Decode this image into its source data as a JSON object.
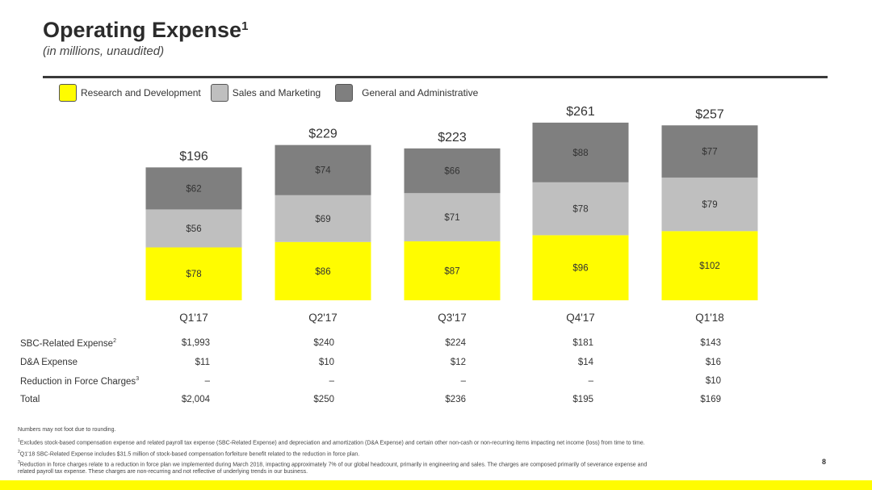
{
  "header": {
    "title": "Operating Expense",
    "title_sup": "1",
    "subtitle": "(in millions, unaudited)"
  },
  "colors": {
    "rd": "#fffc00",
    "sm": "#bfbfbf",
    "ga": "#7f7f7f",
    "text": "#333333"
  },
  "chart_data": {
    "type": "bar",
    "stacked": true,
    "categories": [
      "Q1'17",
      "Q2'17",
      "Q3'17",
      "Q4'17",
      "Q1'18"
    ],
    "series": [
      {
        "name": "Research and Development",
        "values": [
          78,
          86,
          87,
          96,
          102
        ],
        "labels": [
          "$78",
          "$86",
          "$87",
          "$96",
          "$102"
        ]
      },
      {
        "name": "Sales and Marketing",
        "values": [
          56,
          69,
          71,
          78,
          79
        ],
        "labels": [
          "$56",
          "$69",
          "$71",
          "$78",
          "$79"
        ]
      },
      {
        "name": "General and Administrative",
        "values": [
          62,
          74,
          66,
          88,
          77
        ],
        "labels": [
          "$62",
          "$74",
          "$66",
          "$88",
          "$77"
        ]
      }
    ],
    "totals": [
      196,
      229,
      223,
      261,
      257
    ],
    "total_labels": [
      "$196",
      "$229",
      "$223",
      "$261",
      "$257"
    ],
    "legend_position": "top-left",
    "grid": false
  },
  "table": {
    "rows": [
      {
        "label": "SBC-Related Expense",
        "sup": "2",
        "values": [
          "$1,993",
          "$240",
          "$224",
          "$181",
          "$143"
        ]
      },
      {
        "label": "D&A Expense",
        "sup": "",
        "values": [
          "$11",
          "$10",
          "$12",
          "$14",
          "$16"
        ]
      },
      {
        "label": "Reduction in Force Charges",
        "sup": "3",
        "values": [
          "–",
          "–",
          "–",
          "–",
          "$10"
        ]
      },
      {
        "label": "Total",
        "sup": "",
        "values": [
          "$2,004",
          "$250",
          "$236",
          "$195",
          "$169"
        ]
      }
    ]
  },
  "footnotes": {
    "rounding": "Numbers may not foot due to rounding.",
    "n1_sup": "1",
    "n1": "Excludes stock-based compensation expense and related payroll tax expense (SBC-Related Expense) and depreciation and amortization (D&A Expense) and certain other non-cash or non-recurring items impacting net income (loss) from time to time.",
    "n2_sup": "2",
    "n2": "Q1'18 SBC-Related Expense includes $31.5 million of stock-based compensation forfeiture benefit related to the reduction in force plan.",
    "n3_sup": "3",
    "n3a": "Reduction in force charges relate to a reduction in force plan we implemented during March 2018, impacting approximately 7% of our global headcount, primarily in engineering and sales. The charges are composed primarily of severance expense and",
    "n3b": "related payroll tax expense. These charges are non-recurring and not reflective of underlying trends in our business."
  },
  "page_number": "8"
}
